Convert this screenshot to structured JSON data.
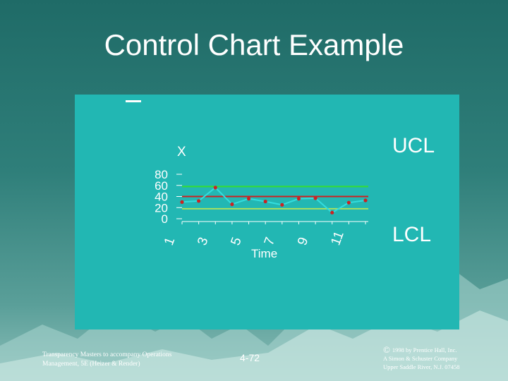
{
  "slide": {
    "title": "Control Chart Example",
    "ucl_label": "UCL",
    "lcl_label": "LCL"
  },
  "footer": {
    "left_line1": "Transparency Masters to accompany Operations",
    "left_line2": "Management, 5E (Heizer & Render)",
    "page": "4-72",
    "copyright_symbol": "©",
    "right_line1": "1998 by Prentice Hall, Inc.",
    "right_line2": "A Simon & Schuster Company",
    "right_line3": "Upper Saddle River, N.J. 07458"
  },
  "colors": {
    "panel": "#22b7b3",
    "ucl_line": "#33dd33",
    "center_line": "#cc2222",
    "lcl_line": "#a8e060",
    "data_line": "#33dddd",
    "points": "#cc2222"
  },
  "chart_data": {
    "type": "line",
    "y_axis_symbol": "X",
    "xlabel": "Time",
    "ylabel": "",
    "ylim": [
      0,
      80
    ],
    "yticks": [
      "0",
      "20",
      "40",
      "60",
      "80"
    ],
    "xticks": [
      "1",
      "3",
      "5",
      "7",
      "9",
      "11"
    ],
    "x": [
      1,
      2,
      3,
      4,
      5,
      6,
      7,
      8,
      9,
      10,
      11,
      12
    ],
    "values": [
      30,
      32,
      56,
      26,
      36,
      31,
      25,
      36,
      37,
      11,
      29,
      33
    ],
    "ucl": 58,
    "center": 40,
    "lcl": 18,
    "grid": false
  }
}
